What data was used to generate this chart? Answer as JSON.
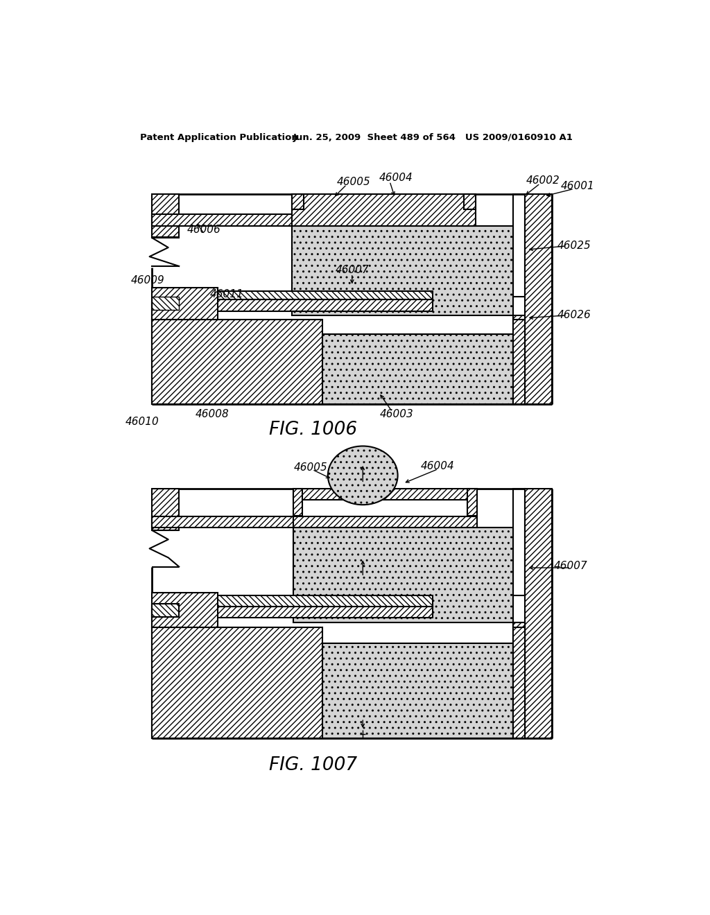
{
  "page_header_left": "Patent Application Publication",
  "page_header_mid": "Jun. 25, 2009  Sheet 489 of 564   US 2009/0160910 A1",
  "fig1_title": "FIG. 1006",
  "fig2_title": "FIG. 1007",
  "bg_color": "#ffffff"
}
